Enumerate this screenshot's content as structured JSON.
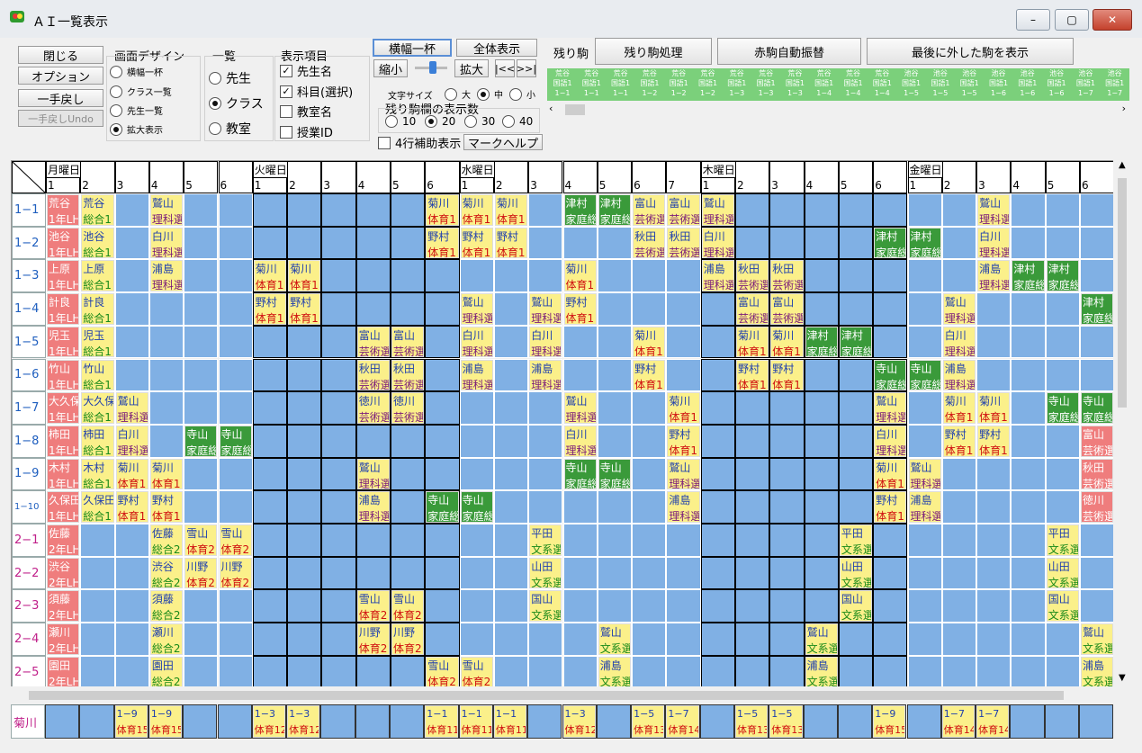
{
  "window": {
    "title": "ＡＩ一覧表示",
    "minimize": "–",
    "maximize": "▢",
    "close": "✕"
  },
  "left_buttons": {
    "close": "閉じる",
    "option": "オプション",
    "undo": "一手戻し",
    "undo_disabled": "一手戻しUndo"
  },
  "design": {
    "label": "画面デザイン",
    "options": [
      "横幅一杯",
      "クラス一覧",
      "先生一覧",
      "拡大表示"
    ],
    "selected": 3
  },
  "list": {
    "label": "一覧",
    "options": [
      "先生",
      "クラス",
      "教室"
    ],
    "selected": 1
  },
  "display": {
    "label": "表示項目",
    "items": [
      "先生名",
      "科目(選択)",
      "教室名",
      "授業ID"
    ],
    "checked": [
      true,
      true,
      false,
      false
    ]
  },
  "view_buttons": {
    "fit_width": "横幅一杯",
    "show_all": "全体表示",
    "shrink": "縮小",
    "expand": "拡大",
    "prev": "|<<",
    "next": ">>|"
  },
  "font_size": {
    "label": "文字サイズ",
    "options": [
      "大",
      "中",
      "小"
    ],
    "selected": 1
  },
  "remain_count": {
    "label": "残り駒欄の表示数",
    "options": [
      "10",
      "20",
      "30",
      "40"
    ],
    "selected": 1
  },
  "aux_row": {
    "label": "4行補助表示",
    "checked": false
  },
  "mark_help": "マークヘルプ",
  "remaining": {
    "label": "残り駒",
    "process": "残り駒処理",
    "auto_swap": "赤駒自動振替",
    "show_last": "最後に外した駒を表示"
  },
  "strip": [
    {
      "t": "荒谷",
      "s": "国語1",
      "c": "1−1"
    },
    {
      "t": "荒谷",
      "s": "国語1",
      "c": "1−1"
    },
    {
      "t": "荒谷",
      "s": "国語1",
      "c": "1−1"
    },
    {
      "t": "荒谷",
      "s": "国語1",
      "c": "1−2"
    },
    {
      "t": "荒谷",
      "s": "国語1",
      "c": "1−2"
    },
    {
      "t": "荒谷",
      "s": "国語1",
      "c": "1−2"
    },
    {
      "t": "荒谷",
      "s": "国語1",
      "c": "1−3"
    },
    {
      "t": "荒谷",
      "s": "国語1",
      "c": "1−3"
    },
    {
      "t": "荒谷",
      "s": "国語1",
      "c": "1−3"
    },
    {
      "t": "荒谷",
      "s": "国語1",
      "c": "1−4"
    },
    {
      "t": "荒谷",
      "s": "国語1",
      "c": "1−4"
    },
    {
      "t": "荒谷",
      "s": "国語1",
      "c": "1−4"
    },
    {
      "t": "池谷",
      "s": "国語1",
      "c": "1−5"
    },
    {
      "t": "池谷",
      "s": "国語1",
      "c": "1−5"
    },
    {
      "t": "池谷",
      "s": "国語1",
      "c": "1−5"
    },
    {
      "t": "池谷",
      "s": "国語1",
      "c": "1−6"
    },
    {
      "t": "池谷",
      "s": "国語1",
      "c": "1−6"
    },
    {
      "t": "池谷",
      "s": "国語1",
      "c": "1−6"
    },
    {
      "t": "池谷",
      "s": "国語1",
      "c": "1−7"
    },
    {
      "t": "池谷",
      "s": "国語1",
      "c": "1−7"
    }
  ],
  "days": [
    "月曜日",
    "火曜日",
    "水曜日",
    "木曜日",
    "金曜日"
  ],
  "periods": [
    6,
    6,
    7,
    6,
    6
  ],
  "rows": [
    "1−1",
    "1−2",
    "1−3",
    "1−4",
    "1−5",
    "1−6",
    "1−7",
    "1−8",
    "1−9",
    "1−10",
    "2−1",
    "2−2",
    "2−3",
    "2−4",
    "2−5"
  ],
  "homeroom": [
    [
      "荒谷",
      "1年LH"
    ],
    [
      "池谷",
      "1年LH"
    ],
    [
      "上原",
      "1年LH"
    ],
    [
      "計良",
      "1年LH"
    ],
    [
      "児玉",
      "1年LH"
    ],
    [
      "竹山",
      "1年LH"
    ],
    [
      "大久保",
      "1年LH"
    ],
    [
      "柿田",
      "1年LH"
    ],
    [
      "木村",
      "1年LH"
    ],
    [
      "久保田",
      "1年LH"
    ],
    [
      "佐藤",
      "2年LH"
    ],
    [
      "渋谷",
      "2年LH"
    ],
    [
      "須藤",
      "2年LH"
    ],
    [
      "瀬川",
      "2年LH"
    ],
    [
      "園田",
      "2年LH"
    ]
  ],
  "pieces": [
    {
      "r": 0,
      "c": 1,
      "t": "荒谷",
      "s": "総合1",
      "k": "y"
    },
    {
      "r": 0,
      "c": 3,
      "t": "鷲山",
      "s": "理科選",
      "k": "y"
    },
    {
      "r": 0,
      "c": 11,
      "t": "菊川",
      "s": "体育1",
      "k": "y"
    },
    {
      "r": 0,
      "c": 12,
      "t": "菊川",
      "s": "体育1",
      "k": "y"
    },
    {
      "r": 0,
      "c": 13,
      "t": "菊川",
      "s": "体育1",
      "k": "y"
    },
    {
      "r": 0,
      "c": 15,
      "t": "津村",
      "s": "家庭総",
      "k": "g"
    },
    {
      "r": 0,
      "c": 16,
      "t": "津村",
      "s": "家庭総",
      "k": "g"
    },
    {
      "r": 0,
      "c": 17,
      "t": "富山",
      "s": "芸術選",
      "k": "y"
    },
    {
      "r": 0,
      "c": 18,
      "t": "富山",
      "s": "芸術選",
      "k": "y"
    },
    {
      "r": 0,
      "c": 19,
      "t": "鷲山",
      "s": "理科選",
      "k": "y"
    },
    {
      "r": 0,
      "c": 27,
      "t": "鷲山",
      "s": "理科選",
      "k": "y"
    },
    {
      "r": 1,
      "c": 1,
      "t": "池谷",
      "s": "総合1",
      "k": "y"
    },
    {
      "r": 1,
      "c": 3,
      "t": "白川",
      "s": "理科選",
      "k": "y"
    },
    {
      "r": 1,
      "c": 11,
      "t": "野村",
      "s": "体育1",
      "k": "y"
    },
    {
      "r": 1,
      "c": 12,
      "t": "野村",
      "s": "体育1",
      "k": "y"
    },
    {
      "r": 1,
      "c": 13,
      "t": "野村",
      "s": "体育1",
      "k": "y"
    },
    {
      "r": 1,
      "c": 17,
      "t": "秋田",
      "s": "芸術選",
      "k": "y"
    },
    {
      "r": 1,
      "c": 18,
      "t": "秋田",
      "s": "芸術選",
      "k": "y"
    },
    {
      "r": 1,
      "c": 19,
      "t": "白川",
      "s": "理科選",
      "k": "y"
    },
    {
      "r": 1,
      "c": 24,
      "t": "津村",
      "s": "家庭総",
      "k": "g"
    },
    {
      "r": 1,
      "c": 25,
      "t": "津村",
      "s": "家庭総",
      "k": "g"
    },
    {
      "r": 1,
      "c": 27,
      "t": "白川",
      "s": "理科選",
      "k": "y"
    },
    {
      "r": 2,
      "c": 1,
      "t": "上原",
      "s": "総合1",
      "k": "y"
    },
    {
      "r": 2,
      "c": 3,
      "t": "浦島",
      "s": "理科選",
      "k": "y"
    },
    {
      "r": 2,
      "c": 6,
      "t": "菊川",
      "s": "体育1",
      "k": "y"
    },
    {
      "r": 2,
      "c": 7,
      "t": "菊川",
      "s": "体育1",
      "k": "y"
    },
    {
      "r": 2,
      "c": 15,
      "t": "菊川",
      "s": "体育1",
      "k": "y"
    },
    {
      "r": 2,
      "c": 19,
      "t": "浦島",
      "s": "理科選",
      "k": "y"
    },
    {
      "r": 2,
      "c": 20,
      "t": "秋田",
      "s": "芸術選",
      "k": "y"
    },
    {
      "r": 2,
      "c": 21,
      "t": "秋田",
      "s": "芸術選",
      "k": "y"
    },
    {
      "r": 2,
      "c": 27,
      "t": "浦島",
      "s": "理科選",
      "k": "y"
    },
    {
      "r": 2,
      "c": 28,
      "t": "津村",
      "s": "家庭総",
      "k": "g"
    },
    {
      "r": 2,
      "c": 29,
      "t": "津村",
      "s": "家庭総",
      "k": "g"
    },
    {
      "r": 3,
      "c": 1,
      "t": "計良",
      "s": "総合1",
      "k": "y"
    },
    {
      "r": 3,
      "c": 6,
      "t": "野村",
      "s": "体育1",
      "k": "y"
    },
    {
      "r": 3,
      "c": 7,
      "t": "野村",
      "s": "体育1",
      "k": "y"
    },
    {
      "r": 3,
      "c": 12,
      "t": "鷲山",
      "s": "理科選",
      "k": "y"
    },
    {
      "r": 3,
      "c": 14,
      "t": "鷲山",
      "s": "理科選",
      "k": "y"
    },
    {
      "r": 3,
      "c": 15,
      "t": "野村",
      "s": "体育1",
      "k": "y"
    },
    {
      "r": 3,
      "c": 20,
      "t": "富山",
      "s": "芸術選",
      "k": "y"
    },
    {
      "r": 3,
      "c": 21,
      "t": "富山",
      "s": "芸術選",
      "k": "y"
    },
    {
      "r": 3,
      "c": 26,
      "t": "鷲山",
      "s": "理科選",
      "k": "y"
    },
    {
      "r": 3,
      "c": 30,
      "t": "津村",
      "s": "家庭総",
      "k": "g"
    },
    {
      "r": 3,
      "c": 31,
      "t": "津村",
      "s": "家庭総",
      "k": "g"
    },
    {
      "r": 4,
      "c": 1,
      "t": "児玉",
      "s": "総合1",
      "k": "y"
    },
    {
      "r": 4,
      "c": 9,
      "t": "富山",
      "s": "芸術選",
      "k": "y"
    },
    {
      "r": 4,
      "c": 10,
      "t": "富山",
      "s": "芸術選",
      "k": "y"
    },
    {
      "r": 4,
      "c": 12,
      "t": "白川",
      "s": "理科選",
      "k": "y"
    },
    {
      "r": 4,
      "c": 14,
      "t": "白川",
      "s": "理科選",
      "k": "y"
    },
    {
      "r": 4,
      "c": 17,
      "t": "菊川",
      "s": "体育1",
      "k": "y"
    },
    {
      "r": 4,
      "c": 20,
      "t": "菊川",
      "s": "体育1",
      "k": "y"
    },
    {
      "r": 4,
      "c": 21,
      "t": "菊川",
      "s": "体育1",
      "k": "y"
    },
    {
      "r": 4,
      "c": 22,
      "t": "津村",
      "s": "家庭総",
      "k": "g"
    },
    {
      "r": 4,
      "c": 23,
      "t": "津村",
      "s": "家庭総",
      "k": "g"
    },
    {
      "r": 4,
      "c": 26,
      "t": "白川",
      "s": "理科選",
      "k": "y"
    },
    {
      "r": 5,
      "c": 1,
      "t": "竹山",
      "s": "総合1",
      "k": "y"
    },
    {
      "r": 5,
      "c": 9,
      "t": "秋田",
      "s": "芸術選",
      "k": "y"
    },
    {
      "r": 5,
      "c": 10,
      "t": "秋田",
      "s": "芸術選",
      "k": "y"
    },
    {
      "r": 5,
      "c": 12,
      "t": "浦島",
      "s": "理科選",
      "k": "y"
    },
    {
      "r": 5,
      "c": 14,
      "t": "浦島",
      "s": "理科選",
      "k": "y"
    },
    {
      "r": 5,
      "c": 17,
      "t": "野村",
      "s": "体育1",
      "k": "y"
    },
    {
      "r": 5,
      "c": 20,
      "t": "野村",
      "s": "体育1",
      "k": "y"
    },
    {
      "r": 5,
      "c": 21,
      "t": "野村",
      "s": "体育1",
      "k": "y"
    },
    {
      "r": 5,
      "c": 24,
      "t": "寺山",
      "s": "家庭総",
      "k": "g"
    },
    {
      "r": 5,
      "c": 25,
      "t": "寺山",
      "s": "家庭総",
      "k": "g"
    },
    {
      "r": 5,
      "c": 26,
      "t": "浦島",
      "s": "理科選",
      "k": "y"
    },
    {
      "r": 6,
      "c": 1,
      "t": "大久保",
      "s": "総合1",
      "k": "y"
    },
    {
      "r": 6,
      "c": 2,
      "t": "鷲山",
      "s": "理科選",
      "k": "y"
    },
    {
      "r": 6,
      "c": 9,
      "t": "徳川",
      "s": "芸術選",
      "k": "y"
    },
    {
      "r": 6,
      "c": 10,
      "t": "徳川",
      "s": "芸術選",
      "k": "y"
    },
    {
      "r": 6,
      "c": 15,
      "t": "鷲山",
      "s": "理科選",
      "k": "y"
    },
    {
      "r": 6,
      "c": 18,
      "t": "菊川",
      "s": "体育1",
      "k": "y"
    },
    {
      "r": 6,
      "c": 24,
      "t": "鷲山",
      "s": "理科選",
      "k": "y"
    },
    {
      "r": 6,
      "c": 26,
      "t": "菊川",
      "s": "体育1",
      "k": "y"
    },
    {
      "r": 6,
      "c": 27,
      "t": "菊川",
      "s": "体育1",
      "k": "y"
    },
    {
      "r": 6,
      "c": 29,
      "t": "寺山",
      "s": "家庭総",
      "k": "g"
    },
    {
      "r": 6,
      "c": 30,
      "t": "寺山",
      "s": "家庭総",
      "k": "g"
    },
    {
      "r": 7,
      "c": 1,
      "t": "柿田",
      "s": "総合1",
      "k": "y"
    },
    {
      "r": 7,
      "c": 2,
      "t": "白川",
      "s": "理科選",
      "k": "y"
    },
    {
      "r": 7,
      "c": 4,
      "t": "寺山",
      "s": "家庭総",
      "k": "g"
    },
    {
      "r": 7,
      "c": 5,
      "t": "寺山",
      "s": "家庭総",
      "k": "g"
    },
    {
      "r": 7,
      "c": 15,
      "t": "白川",
      "s": "理科選",
      "k": "y"
    },
    {
      "r": 7,
      "c": 18,
      "t": "野村",
      "s": "体育1",
      "k": "y"
    },
    {
      "r": 7,
      "c": 24,
      "t": "白川",
      "s": "理科選",
      "k": "y"
    },
    {
      "r": 7,
      "c": 26,
      "t": "野村",
      "s": "体育1",
      "k": "y"
    },
    {
      "r": 7,
      "c": 27,
      "t": "野村",
      "s": "体育1",
      "k": "y"
    },
    {
      "r": 7,
      "c": 30,
      "t": "富山",
      "s": "芸術選",
      "k": "p"
    },
    {
      "r": 7,
      "c": 31,
      "t": "富山",
      "s": "芸術選",
      "k": "p"
    },
    {
      "r": 8,
      "c": 1,
      "t": "木村",
      "s": "総合1",
      "k": "y"
    },
    {
      "r": 8,
      "c": 2,
      "t": "菊川",
      "s": "体育1",
      "k": "y"
    },
    {
      "r": 8,
      "c": 3,
      "t": "菊川",
      "s": "体育1",
      "k": "y"
    },
    {
      "r": 8,
      "c": 9,
      "t": "鷲山",
      "s": "理科選",
      "k": "y"
    },
    {
      "r": 8,
      "c": 15,
      "t": "寺山",
      "s": "家庭総",
      "k": "g"
    },
    {
      "r": 8,
      "c": 16,
      "t": "寺山",
      "s": "家庭総",
      "k": "g"
    },
    {
      "r": 8,
      "c": 18,
      "t": "鷲山",
      "s": "理科選",
      "k": "y"
    },
    {
      "r": 8,
      "c": 24,
      "t": "菊川",
      "s": "体育1",
      "k": "y"
    },
    {
      "r": 8,
      "c": 25,
      "t": "鷲山",
      "s": "理科選",
      "k": "y"
    },
    {
      "r": 8,
      "c": 30,
      "t": "秋田",
      "s": "芸術選",
      "k": "p"
    },
    {
      "r": 8,
      "c": 31,
      "t": "秋田",
      "s": "芸術選",
      "k": "p"
    },
    {
      "r": 9,
      "c": 1,
      "t": "久保田",
      "s": "総合1",
      "k": "y"
    },
    {
      "r": 9,
      "c": 2,
      "t": "野村",
      "s": "体育1",
      "k": "y"
    },
    {
      "r": 9,
      "c": 3,
      "t": "野村",
      "s": "体育1",
      "k": "y"
    },
    {
      "r": 9,
      "c": 9,
      "t": "浦島",
      "s": "理科選",
      "k": "y"
    },
    {
      "r": 9,
      "c": 11,
      "t": "寺山",
      "s": "家庭総",
      "k": "g"
    },
    {
      "r": 9,
      "c": 12,
      "t": "寺山",
      "s": "家庭総",
      "k": "g"
    },
    {
      "r": 9,
      "c": 18,
      "t": "浦島",
      "s": "理科選",
      "k": "y"
    },
    {
      "r": 9,
      "c": 24,
      "t": "野村",
      "s": "体育1",
      "k": "y"
    },
    {
      "r": 9,
      "c": 25,
      "t": "浦島",
      "s": "理科選",
      "k": "y"
    },
    {
      "r": 9,
      "c": 30,
      "t": "徳川",
      "s": "芸術選",
      "k": "p"
    },
    {
      "r": 9,
      "c": 31,
      "t": "徳川",
      "s": "芸術選",
      "k": "p"
    },
    {
      "r": 10,
      "c": 3,
      "t": "佐藤",
      "s": "総合2",
      "k": "y"
    },
    {
      "r": 10,
      "c": 4,
      "t": "雪山",
      "s": "体育2",
      "k": "y"
    },
    {
      "r": 10,
      "c": 5,
      "t": "雪山",
      "s": "体育2",
      "k": "y"
    },
    {
      "r": 10,
      "c": 14,
      "t": "平田",
      "s": "文系選",
      "k": "y"
    },
    {
      "r": 10,
      "c": 23,
      "t": "平田",
      "s": "文系選",
      "k": "y"
    },
    {
      "r": 10,
      "c": 29,
      "t": "平田",
      "s": "文系選",
      "k": "y"
    },
    {
      "r": 11,
      "c": 3,
      "t": "渋谷",
      "s": "総合2",
      "k": "y"
    },
    {
      "r": 11,
      "c": 4,
      "t": "川野",
      "s": "体育2",
      "k": "y"
    },
    {
      "r": 11,
      "c": 5,
      "t": "川野",
      "s": "体育2",
      "k": "y"
    },
    {
      "r": 11,
      "c": 14,
      "t": "山田",
      "s": "文系選",
      "k": "y"
    },
    {
      "r": 11,
      "c": 23,
      "t": "山田",
      "s": "文系選",
      "k": "y"
    },
    {
      "r": 11,
      "c": 29,
      "t": "山田",
      "s": "文系選",
      "k": "y"
    },
    {
      "r": 12,
      "c": 3,
      "t": "須藤",
      "s": "総合2",
      "k": "y"
    },
    {
      "r": 12,
      "c": 9,
      "t": "雪山",
      "s": "体育2",
      "k": "y"
    },
    {
      "r": 12,
      "c": 10,
      "t": "雪山",
      "s": "体育2",
      "k": "y"
    },
    {
      "r": 12,
      "c": 14,
      "t": "国山",
      "s": "文系選",
      "k": "y"
    },
    {
      "r": 12,
      "c": 23,
      "t": "国山",
      "s": "文系選",
      "k": "y"
    },
    {
      "r": 12,
      "c": 29,
      "t": "国山",
      "s": "文系選",
      "k": "y"
    },
    {
      "r": 13,
      "c": 3,
      "t": "瀬川",
      "s": "総合2",
      "k": "y"
    },
    {
      "r": 13,
      "c": 9,
      "t": "川野",
      "s": "体育2",
      "k": "y"
    },
    {
      "r": 13,
      "c": 10,
      "t": "川野",
      "s": "体育2",
      "k": "y"
    },
    {
      "r": 13,
      "c": 16,
      "t": "鷲山",
      "s": "文系選",
      "k": "y"
    },
    {
      "r": 13,
      "c": 22,
      "t": "鷲山",
      "s": "文系選",
      "k": "y"
    },
    {
      "r": 13,
      "c": 30,
      "t": "鷲山",
      "s": "文系選",
      "k": "y"
    },
    {
      "r": 14,
      "c": 3,
      "t": "園田",
      "s": "総合2",
      "k": "y"
    },
    {
      "r": 14,
      "c": 11,
      "t": "雪山",
      "s": "体育2",
      "k": "y"
    },
    {
      "r": 14,
      "c": 12,
      "t": "雪山",
      "s": "体育2",
      "k": "y"
    },
    {
      "r": 14,
      "c": 16,
      "t": "浦島",
      "s": "文系選",
      "k": "y"
    },
    {
      "r": 14,
      "c": 22,
      "t": "浦島",
      "s": "文系選",
      "k": "y"
    },
    {
      "r": 14,
      "c": 30,
      "t": "浦島",
      "s": "文系選",
      "k": "y"
    }
  ],
  "bottom_row": {
    "label": "菊川",
    "pieces": [
      {
        "c": 2,
        "a": "1−9",
        "b": "体育15"
      },
      {
        "c": 3,
        "a": "1−9",
        "b": "体育15"
      },
      {
        "c": 6,
        "a": "1−3",
        "b": "体育12"
      },
      {
        "c": 7,
        "a": "1−3",
        "b": "体育12"
      },
      {
        "c": 11,
        "a": "1−1",
        "b": "体育11"
      },
      {
        "c": 12,
        "a": "1−1",
        "b": "体育11"
      },
      {
        "c": 13,
        "a": "1−1",
        "b": "体育11"
      },
      {
        "c": 15,
        "a": "1−3",
        "b": "体育12"
      },
      {
        "c": 17,
        "a": "1−5",
        "b": "体育13"
      },
      {
        "c": 18,
        "a": "1−7",
        "b": "体育14"
      },
      {
        "c": 20,
        "a": "1−5",
        "b": "体育13"
      },
      {
        "c": 21,
        "a": "1−5",
        "b": "体育13"
      },
      {
        "c": 24,
        "a": "1−9",
        "b": "体育15"
      },
      {
        "c": 26,
        "a": "1−7",
        "b": "体育14"
      },
      {
        "c": 27,
        "a": "1−7",
        "b": "体育14"
      }
    ]
  },
  "colors": {
    "cell": "#80b0e4",
    "yellow": "#fbf08a",
    "green": "#3a9a3a",
    "pink": "#ef7d7d"
  }
}
